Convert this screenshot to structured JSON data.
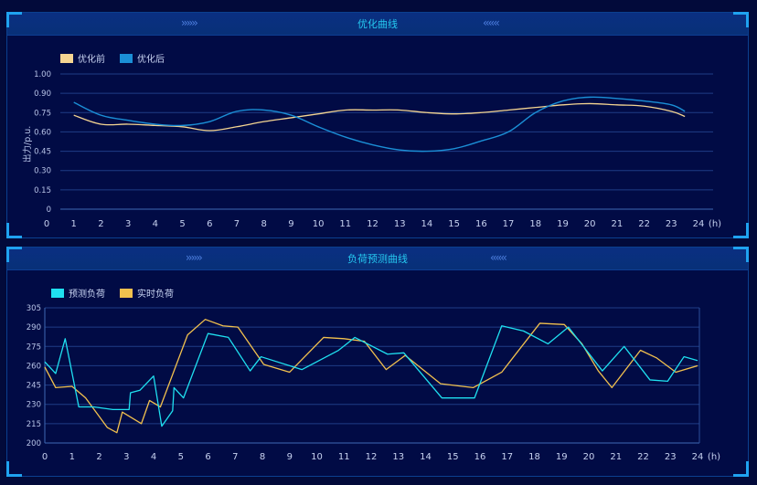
{
  "panels": [
    {
      "title": "优化曲线",
      "left_arrows": "››››››",
      "right_arrows": "‹‹‹‹‹‹",
      "legend": [
        {
          "label": "优化前",
          "color": "#f5d592"
        },
        {
          "label": "优化后",
          "color": "#1b8fd6"
        }
      ]
    },
    {
      "title": "负荷预测曲线",
      "left_arrows": "››››››",
      "right_arrows": "‹‹‹‹‹‹",
      "legend": [
        {
          "label": "预测负荷",
          "color": "#1fe0f0"
        },
        {
          "label": "实时负荷",
          "color": "#f2c14e"
        }
      ]
    }
  ],
  "chart_data": [
    {
      "type": "line",
      "title": "优化曲线",
      "xlabel": "(h)",
      "ylabel": "出力/p.u.",
      "x_ticks": [
        "0",
        "1",
        "2",
        "3",
        "4",
        "5",
        "6",
        "7",
        "8",
        "9",
        "10",
        "11",
        "12",
        "13",
        "14",
        "15",
        "16",
        "17",
        "18",
        "19",
        "20",
        "21",
        "22",
        "23",
        "24"
      ],
      "y_ticks": [
        "0",
        "0.15",
        "0.30",
        "0.45",
        "0.60",
        "0.75",
        "0.90",
        "1.00"
      ],
      "ylim": [
        0,
        1.0
      ],
      "grid": true,
      "legend_position": "top-left",
      "x": [
        1,
        2,
        3,
        4,
        5,
        6,
        7,
        8,
        9,
        10,
        11,
        12,
        13,
        14,
        15,
        16,
        17,
        18,
        19,
        20,
        21,
        22,
        23,
        23.5
      ],
      "series": [
        {
          "name": "优化前",
          "color": "#f5d592",
          "smooth": true,
          "values": [
            0.73,
            0.66,
            0.66,
            0.65,
            0.64,
            0.61,
            0.64,
            0.68,
            0.71,
            0.74,
            0.77,
            0.77,
            0.77,
            0.75,
            0.74,
            0.75,
            0.77,
            0.79,
            0.81,
            0.82,
            0.81,
            0.8,
            0.76,
            0.72
          ]
        },
        {
          "name": "优化后",
          "color": "#1b8fd6",
          "smooth": true,
          "values": [
            0.83,
            0.73,
            0.69,
            0.66,
            0.65,
            0.68,
            0.76,
            0.77,
            0.73,
            0.64,
            0.56,
            0.5,
            0.46,
            0.45,
            0.47,
            0.53,
            0.6,
            0.75,
            0.84,
            0.87,
            0.86,
            0.84,
            0.81,
            0.76
          ]
        }
      ]
    },
    {
      "type": "line",
      "title": "负荷预测曲线",
      "xlabel": "(h)",
      "ylabel": "",
      "x_ticks": [
        "0",
        "1",
        "2",
        "3",
        "4",
        "5",
        "6",
        "7",
        "8",
        "9",
        "10",
        "11",
        "12",
        "13",
        "14",
        "15",
        "16",
        "17",
        "18",
        "19",
        "20",
        "21",
        "22",
        "23",
        "24"
      ],
      "y_ticks": [
        "200",
        "215",
        "230",
        "245",
        "260",
        "275",
        "290",
        "305"
      ],
      "ylim": [
        200,
        305
      ],
      "grid": true,
      "legend_position": "top-left",
      "series": [
        {
          "name": "预测负荷",
          "color": "#1fe0f0",
          "x": [
            0,
            0.4,
            0.75,
            1.25,
            1.8,
            2.5,
            3.1,
            3.15,
            3.5,
            4.0,
            4.3,
            4.7,
            4.75,
            5.1,
            6.0,
            6.75,
            7.55,
            7.95,
            9.45,
            10.8,
            11.4,
            12.6,
            13.2,
            14.6,
            15.8,
            16.8,
            17.6,
            18.5,
            19.25,
            20.5,
            21.3,
            22.25,
            22.9,
            23.5,
            24.0
          ],
          "values": [
            263,
            254,
            281,
            228,
            228,
            226,
            226,
            239,
            241,
            252,
            213,
            225,
            243,
            235,
            285,
            282,
            256,
            267,
            257,
            272,
            282,
            269,
            270,
            235,
            235,
            291,
            287,
            277,
            290,
            256,
            275,
            249,
            248,
            267,
            264
          ]
        },
        {
          "name": "实时负荷",
          "color": "#f2c14e",
          "x": [
            0,
            0.4,
            1.0,
            1.5,
            2.3,
            2.65,
            2.85,
            3.55,
            3.85,
            4.25,
            5.25,
            5.9,
            6.55,
            7.1,
            8.05,
            9.0,
            10.25,
            11.0,
            11.75,
            12.55,
            13.25,
            14.55,
            15.75,
            16.8,
            17.35,
            18.2,
            19.1,
            19.75,
            20.35,
            20.85,
            21.9,
            22.5,
            23.2,
            24.0
          ],
          "values": [
            259,
            243,
            244,
            235,
            212,
            208,
            224,
            215,
            233,
            228,
            284,
            296,
            291,
            290,
            261,
            255,
            282,
            281,
            279,
            257,
            268,
            246,
            243,
            255,
            270,
            293,
            292,
            277,
            256,
            243,
            272,
            266,
            255,
            260
          ]
        }
      ]
    }
  ]
}
